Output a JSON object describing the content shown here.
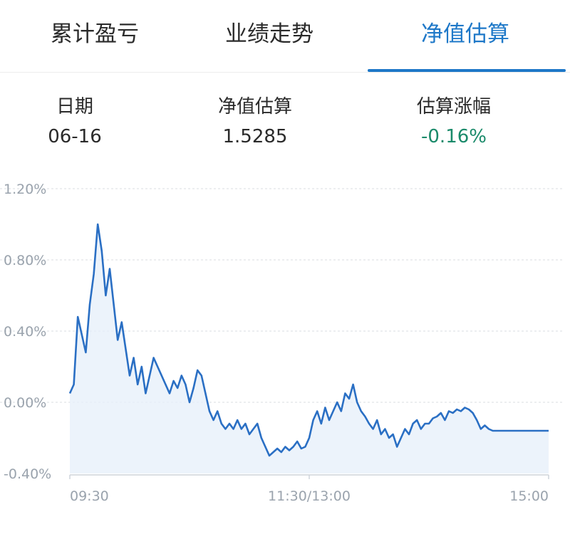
{
  "tabs": [
    {
      "label": "累计盈亏",
      "active": false
    },
    {
      "label": "业绩走势",
      "active": false
    },
    {
      "label": "净值估算",
      "active": true
    }
  ],
  "summary": {
    "date_label": "日期",
    "date_value": "06-16",
    "nav_label": "净值估算",
    "nav_value": "1.5285",
    "change_label": "估算涨幅",
    "change_value": "-0.16%"
  },
  "colors": {
    "accent": "#1e78c8",
    "down": "#1a8a6a",
    "line": "#2a6fc4",
    "fill": "#e6eff9",
    "grid": "#d9dde2",
    "axis_text": "#9aa3ad"
  },
  "chart_data": {
    "type": "area",
    "y_unit": "%",
    "ylim": [
      -0.4,
      1.2
    ],
    "yticks": [
      "1.20%",
      "0.80%",
      "0.40%",
      "0.00%",
      "-0.40%"
    ],
    "ytick_values": [
      1.2,
      0.8,
      0.4,
      0.0,
      -0.4
    ],
    "xticks": [
      "09:30",
      "11:30/13:00",
      "15:00"
    ],
    "x_range": [
      0,
      240
    ],
    "grid": "horizontal-dashed",
    "series": [
      {
        "x": [
          0,
          2,
          4,
          6,
          8,
          10,
          12,
          14,
          16,
          18,
          20,
          22,
          24,
          26,
          28,
          30,
          32,
          34,
          36,
          38,
          40,
          42,
          44,
          46,
          48,
          50,
          52,
          54,
          56,
          58,
          60,
          62,
          64,
          66,
          68,
          70,
          72,
          74,
          76,
          78,
          80,
          82,
          84,
          86,
          88,
          90,
          92,
          94,
          96,
          98,
          100,
          102,
          104,
          106,
          108,
          110,
          112,
          114,
          116,
          118,
          120,
          122,
          124,
          126,
          128,
          130,
          132,
          134,
          136,
          138,
          140,
          142,
          144,
          146,
          148,
          150,
          152,
          154,
          156,
          158,
          160,
          162,
          164,
          166,
          168,
          170,
          172,
          174,
          176,
          178,
          180,
          182,
          184,
          186,
          188,
          190,
          192,
          194,
          196,
          198,
          200,
          202,
          204,
          206,
          208,
          210,
          212,
          214,
          216,
          218,
          220,
          222,
          224,
          226,
          228,
          230,
          232,
          234,
          236,
          238,
          240
        ],
        "y": [
          0.05,
          0.1,
          0.48,
          0.38,
          0.28,
          0.55,
          0.72,
          1.0,
          0.85,
          0.6,
          0.75,
          0.55,
          0.35,
          0.45,
          0.3,
          0.15,
          0.25,
          0.1,
          0.2,
          0.05,
          0.15,
          0.25,
          0.2,
          0.15,
          0.1,
          0.05,
          0.12,
          0.08,
          0.15,
          0.1,
          0.0,
          0.08,
          0.18,
          0.15,
          0.05,
          -0.05,
          -0.1,
          -0.05,
          -0.12,
          -0.15,
          -0.12,
          -0.15,
          -0.1,
          -0.15,
          -0.12,
          -0.18,
          -0.15,
          -0.12,
          -0.2,
          -0.25,
          -0.3,
          -0.28,
          -0.26,
          -0.28,
          -0.25,
          -0.27,
          -0.25,
          -0.22,
          -0.26,
          -0.25,
          -0.2,
          -0.1,
          -0.05,
          -0.12,
          -0.03,
          -0.1,
          -0.05,
          0.0,
          -0.05,
          0.05,
          0.02,
          0.1,
          0.0,
          -0.05,
          -0.08,
          -0.12,
          -0.15,
          -0.1,
          -0.18,
          -0.15,
          -0.2,
          -0.18,
          -0.25,
          -0.2,
          -0.15,
          -0.18,
          -0.12,
          -0.1,
          -0.15,
          -0.12,
          -0.12,
          -0.09,
          -0.08,
          -0.06,
          -0.1,
          -0.05,
          -0.06,
          -0.04,
          -0.05,
          -0.03,
          -0.04,
          -0.06,
          -0.1,
          -0.15,
          -0.13,
          -0.15,
          -0.16,
          -0.16,
          -0.16,
          -0.16,
          -0.16,
          -0.16,
          -0.16,
          -0.16,
          -0.16,
          -0.16,
          -0.16,
          -0.16,
          -0.16,
          -0.16,
          -0.16
        ]
      }
    ]
  }
}
